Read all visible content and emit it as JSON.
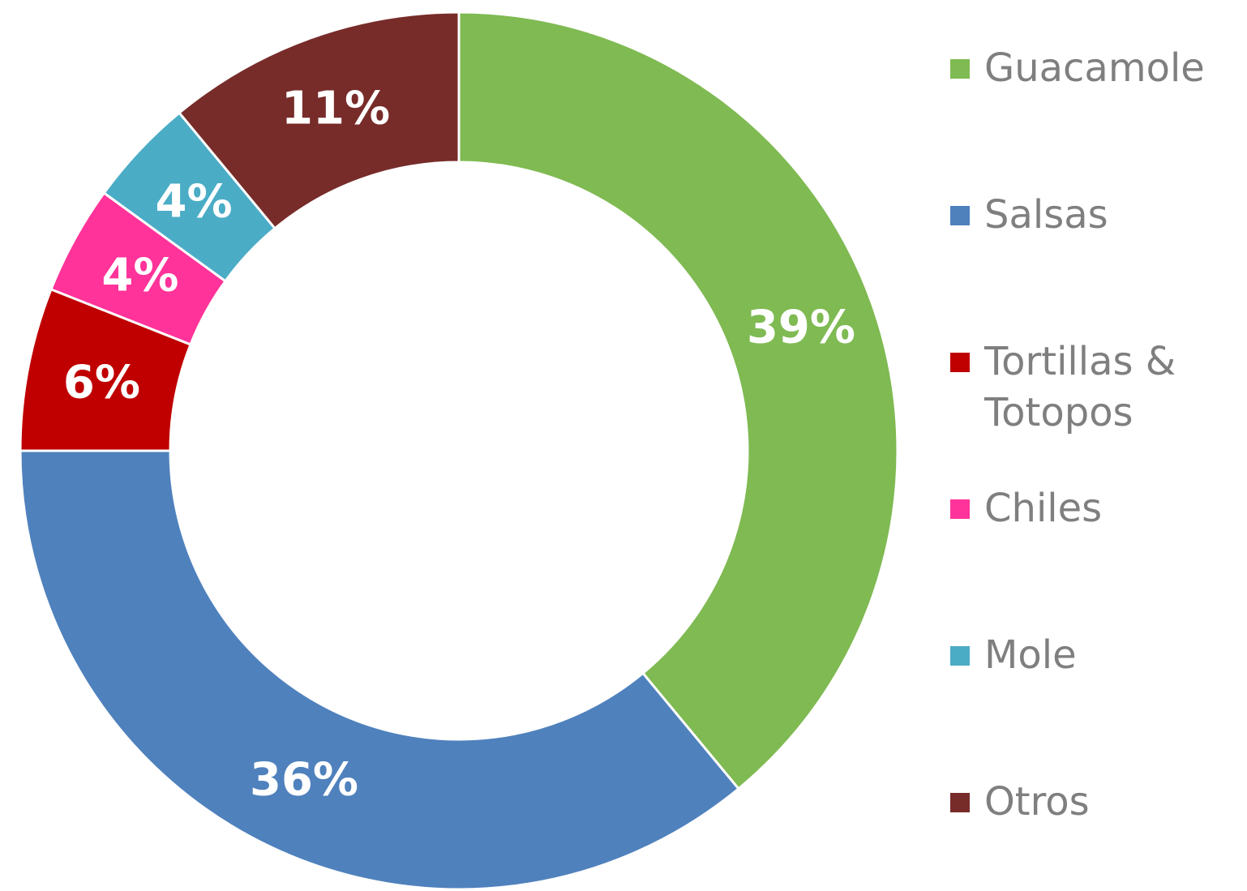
{
  "chart_data": {
    "type": "donut",
    "categories": [
      "Guacamole",
      "Salsas",
      "Tortillas & Totopos",
      "Chiles",
      "Mole",
      "Otros"
    ],
    "values": [
      39,
      36,
      6,
      4,
      4,
      11
    ],
    "value_labels": [
      "39%",
      "36%",
      "6%",
      "4%",
      "4%",
      "11%"
    ],
    "colors": [
      "#7FBA52",
      "#4F81BD",
      "#C00000",
      "#FF3399",
      "#4BACC6",
      "#772C2A"
    ],
    "legend": "right"
  }
}
